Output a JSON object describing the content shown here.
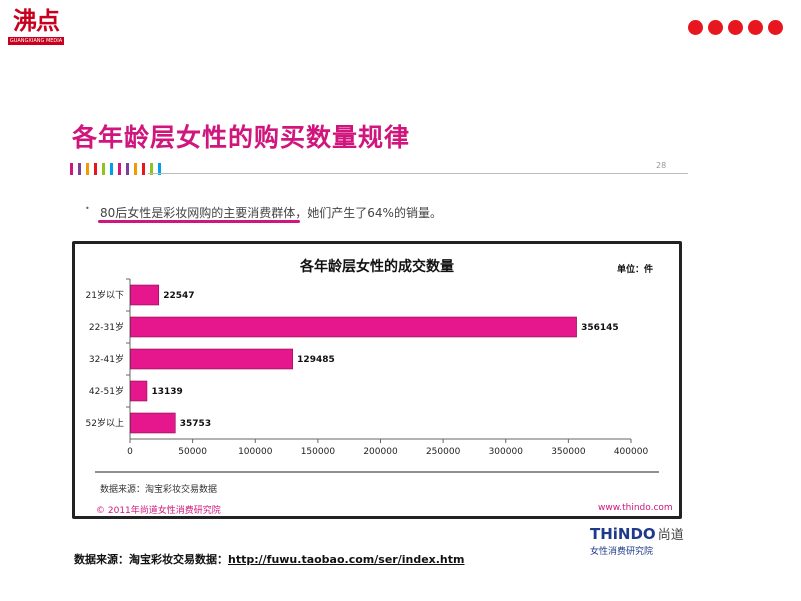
{
  "header": {
    "logo_text": "沸点",
    "logo_sub": "GUANGXIANG MEDIA",
    "accent_color": "#e8171f"
  },
  "slide": {
    "title": "各年龄层女性的购买数量规律",
    "page_number": "28",
    "bullet_mark": "•",
    "bullet_text": "80后女性是彩妆网购的主要消费群体，她们产生了64%的销量。",
    "stripe_colors": [
      "#d0157d",
      "#7e3f98",
      "#f39800",
      "#e8171f",
      "#8fc31f",
      "#00a0e9",
      "#d0157d",
      "#7e3f98",
      "#f39800",
      "#e8171f",
      "#8fc31f",
      "#00a0e9"
    ]
  },
  "chart_data": {
    "type": "bar",
    "orientation": "horizontal",
    "title": "各年龄层女性的成交数量",
    "unit_label": "单位：件",
    "categories": [
      "21岁以下",
      "22-31岁",
      "32-41岁",
      "42-51岁",
      "52岁以上"
    ],
    "values": [
      22547,
      356145,
      129485,
      13139,
      35753
    ],
    "xlim": [
      0,
      400000
    ],
    "x_ticks": [
      0,
      50000,
      100000,
      150000,
      200000,
      250000,
      300000,
      350000,
      400000
    ],
    "bar_color": "#e6168c",
    "grid": false,
    "data_labels": true
  },
  "chart_footer": {
    "source": "数据来源：淘宝彩妆交易数据",
    "copyright": "© 2011年尚道女性消费研究院",
    "website": "www.thindo.com"
  },
  "brand": {
    "name": "THiNDO",
    "name_cn": "尚道",
    "sub": "女性消费研究院"
  },
  "footer": {
    "source_label": "数据来源：淘宝彩妆交易数据：",
    "source_url": "http://fuwu.taobao.com/ser/index.htm"
  }
}
